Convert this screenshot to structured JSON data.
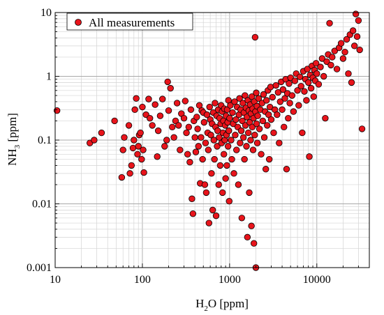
{
  "chart_data": {
    "type": "scatter",
    "title": "",
    "xlabel": {
      "base": "H",
      "sub": "2",
      "rest": "O [ppm]"
    },
    "ylabel": {
      "base": "NH",
      "sub": "3",
      "rest": " [ppm]"
    },
    "x_scale": "log",
    "y_scale": "log",
    "xlim": [
      10,
      40000
    ],
    "ylim": [
      0.001,
      10
    ],
    "x_ticks": [
      {
        "value": 10,
        "label": "10"
      },
      {
        "value": 100,
        "label": "100"
      },
      {
        "value": 1000,
        "label": "1000"
      },
      {
        "value": 10000,
        "label": "10000"
      }
    ],
    "y_ticks": [
      {
        "value": 0.001,
        "label": "0.001"
      },
      {
        "value": 0.01,
        "label": "0.01"
      },
      {
        "value": 0.1,
        "label": "0.1"
      },
      {
        "value": 1,
        "label": "1"
      },
      {
        "value": 10,
        "label": "10"
      }
    ],
    "grid": true,
    "legend_position": "top-left",
    "series": [
      {
        "name": "All measurements",
        "color": "#e8141b",
        "edge_color": "#000000",
        "points": [
          [
            10.5,
            0.29
          ],
          [
            25,
            0.09
          ],
          [
            28,
            0.1
          ],
          [
            34,
            0.13
          ],
          [
            48,
            0.2
          ],
          [
            58,
            0.026
          ],
          [
            60,
            0.07
          ],
          [
            62,
            0.11
          ],
          [
            70,
            0.17
          ],
          [
            72,
            0.03
          ],
          [
            75,
            0.04
          ],
          [
            78,
            0.075
          ],
          [
            80,
            0.1
          ],
          [
            82,
            0.3
          ],
          [
            85,
            0.45
          ],
          [
            88,
            0.06
          ],
          [
            90,
            0.08
          ],
          [
            92,
            0.12
          ],
          [
            95,
            0.13
          ],
          [
            98,
            0.05
          ],
          [
            100,
            0.33
          ],
          [
            102,
            0.07
          ],
          [
            104,
            0.031
          ],
          [
            110,
            0.25
          ],
          [
            118,
            0.44
          ],
          [
            122,
            0.22
          ],
          [
            130,
            0.17
          ],
          [
            140,
            0.36
          ],
          [
            148,
            0.055
          ],
          [
            152,
            0.14
          ],
          [
            160,
            0.24
          ],
          [
            170,
            0.44
          ],
          [
            180,
            0.08
          ],
          [
            190,
            0.1
          ],
          [
            195,
            0.82
          ],
          [
            200,
            0.29
          ],
          [
            210,
            0.65
          ],
          [
            220,
            0.16
          ],
          [
            230,
            0.11
          ],
          [
            240,
            0.2
          ],
          [
            250,
            0.38
          ],
          [
            260,
            0.17
          ],
          [
            270,
            0.07
          ],
          [
            280,
            0.26
          ],
          [
            300,
            0.22
          ],
          [
            310,
            0.41
          ],
          [
            320,
            0.13
          ],
          [
            330,
            0.06
          ],
          [
            340,
            0.16
          ],
          [
            350,
            0.045
          ],
          [
            360,
            0.3
          ],
          [
            370,
            0.012
          ],
          [
            380,
            0.007
          ],
          [
            390,
            0.2
          ],
          [
            400,
            0.11
          ],
          [
            410,
            0.065
          ],
          [
            420,
            0.23
          ],
          [
            430,
            0.15
          ],
          [
            440,
            0.08
          ],
          [
            450,
            0.35
          ],
          [
            460,
            0.021
          ],
          [
            470,
            0.11
          ],
          [
            480,
            0.29
          ],
          [
            490,
            0.05
          ],
          [
            500,
            0.27
          ],
          [
            510,
            0.19
          ],
          [
            520,
            0.02
          ],
          [
            530,
            0.09
          ],
          [
            540,
            0.015
          ],
          [
            550,
            0.25
          ],
          [
            560,
            0.13
          ],
          [
            570,
            0.07
          ],
          [
            580,
            0.005
          ],
          [
            590,
            0.33
          ],
          [
            600,
            0.21
          ],
          [
            610,
            0.12
          ],
          [
            620,
            0.03
          ],
          [
            630,
            0.18
          ],
          [
            640,
            0.008
          ],
          [
            650,
            0.27
          ],
          [
            660,
            0.1
          ],
          [
            670,
            0.05
          ],
          [
            680,
            0.38
          ],
          [
            690,
            0.16
          ],
          [
            700,
            0.0065
          ],
          [
            710,
            0.24
          ],
          [
            720,
            0.08
          ],
          [
            730,
            0.14
          ],
          [
            740,
            0.3
          ],
          [
            750,
            0.02
          ],
          [
            760,
            0.11
          ],
          [
            770,
            0.22
          ],
          [
            780,
            0.04
          ],
          [
            790,
            0.18
          ],
          [
            800,
            0.35
          ],
          [
            810,
            0.09
          ],
          [
            820,
            0.28
          ],
          [
            830,
            0.015
          ],
          [
            840,
            0.13
          ],
          [
            850,
            0.2
          ],
          [
            860,
            0.06
          ],
          [
            870,
            0.31
          ],
          [
            880,
            0.1
          ],
          [
            890,
            0.17
          ],
          [
            900,
            0.025
          ],
          [
            910,
            0.24
          ],
          [
            920,
            0.12
          ],
          [
            930,
            0.04
          ],
          [
            940,
            0.3
          ],
          [
            950,
            0.19
          ],
          [
            960,
            0.08
          ],
          [
            970,
            0.42
          ],
          [
            980,
            0.14
          ],
          [
            990,
            0.011
          ],
          [
            1000,
            0.22
          ],
          [
            1020,
            0.35
          ],
          [
            1040,
            0.1
          ],
          [
            1060,
            0.05
          ],
          [
            1080,
            0.27
          ],
          [
            1100,
            0.18
          ],
          [
            1120,
            0.03
          ],
          [
            1140,
            0.4
          ],
          [
            1160,
            0.12
          ],
          [
            1180,
            0.21
          ],
          [
            1200,
            0.07
          ],
          [
            1220,
            0.33
          ],
          [
            1240,
            0.16
          ],
          [
            1260,
            0.02
          ],
          [
            1280,
            0.25
          ],
          [
            1300,
            0.45
          ],
          [
            1320,
            0.09
          ],
          [
            1340,
            0.3
          ],
          [
            1360,
            0.14
          ],
          [
            1380,
            0.006
          ],
          [
            1400,
            0.2
          ],
          [
            1420,
            0.38
          ],
          [
            1440,
            0.11
          ],
          [
            1460,
            0.27
          ],
          [
            1480,
            0.05
          ],
          [
            1500,
            0.5
          ],
          [
            1520,
            0.17
          ],
          [
            1540,
            0.32
          ],
          [
            1560,
            0.08
          ],
          [
            1580,
            0.23
          ],
          [
            1600,
            0.003
          ],
          [
            1620,
            0.42
          ],
          [
            1640,
            0.13
          ],
          [
            1660,
            0.29
          ],
          [
            1680,
            0.015
          ],
          [
            1700,
            0.19
          ],
          [
            1720,
            0.36
          ],
          [
            1740,
            0.1
          ],
          [
            1760,
            0.26
          ],
          [
            1780,
            0.0045
          ],
          [
            1800,
            0.48
          ],
          [
            1820,
            0.16
          ],
          [
            1840,
            0.31
          ],
          [
            1860,
            0.07
          ],
          [
            1880,
            0.22
          ],
          [
            1900,
            0.0024
          ],
          [
            1920,
            0.4
          ],
          [
            1940,
            0.12
          ],
          [
            1960,
            4.1
          ],
          [
            1980,
            0.28
          ],
          [
            2000,
            0.001
          ],
          [
            2020,
            0.55
          ],
          [
            2040,
            0.18
          ],
          [
            2060,
            0.34
          ],
          [
            2080,
            0.09
          ],
          [
            2100,
            0.24
          ],
          [
            2150,
            0.45
          ],
          [
            2200,
            0.15
          ],
          [
            2250,
            0.3
          ],
          [
            2300,
            0.06
          ],
          [
            2350,
            0.38
          ],
          [
            2400,
            0.2
          ],
          [
            2450,
            0.52
          ],
          [
            2500,
            0.11
          ],
          [
            2550,
            0.28
          ],
          [
            2600,
            0.035
          ],
          [
            2650,
            0.42
          ],
          [
            2700,
            0.17
          ],
          [
            2750,
            0.6
          ],
          [
            2800,
            0.25
          ],
          [
            2850,
            0.05
          ],
          [
            2900,
            0.33
          ],
          [
            2950,
            0.68
          ],
          [
            3000,
            0.21
          ],
          [
            3100,
            0.47
          ],
          [
            3200,
            0.13
          ],
          [
            3300,
            0.3
          ],
          [
            3400,
            0.72
          ],
          [
            3500,
            0.25
          ],
          [
            3600,
            0.56
          ],
          [
            3700,
            0.09
          ],
          [
            3800,
            0.4
          ],
          [
            3900,
            0.82
          ],
          [
            4000,
            0.3
          ],
          [
            4100,
            0.62
          ],
          [
            4200,
            0.16
          ],
          [
            4300,
            0.45
          ],
          [
            4400,
            0.9
          ],
          [
            4500,
            0.035
          ],
          [
            4600,
            0.54
          ],
          [
            4700,
            0.22
          ],
          [
            4800,
            0.77
          ],
          [
            4900,
            0.38
          ],
          [
            5000,
            0.95
          ],
          [
            5200,
            0.5
          ],
          [
            5400,
            0.28
          ],
          [
            5600,
            0.85
          ],
          [
            5800,
            1.1
          ],
          [
            6000,
            0.6
          ],
          [
            6200,
            0.35
          ],
          [
            6400,
            0.98
          ],
          [
            6600,
            0.7
          ],
          [
            6800,
            0.13
          ],
          [
            7000,
            1.2
          ],
          [
            7200,
            0.58
          ],
          [
            7400,
            0.9
          ],
          [
            7600,
            0.42
          ],
          [
            7800,
            1.3
          ],
          [
            8000,
            0.8
          ],
          [
            8200,
            0.055
          ],
          [
            8400,
            1.05
          ],
          [
            8600,
            0.65
          ],
          [
            8800,
            1.45
          ],
          [
            9000,
            0.95
          ],
          [
            9200,
            0.48
          ],
          [
            9400,
            1.25
          ],
          [
            9600,
            0.85
          ],
          [
            9800,
            1.6
          ],
          [
            10000,
            1.1
          ],
          [
            10500,
            0.75
          ],
          [
            11000,
            1.4
          ],
          [
            11500,
            1.9
          ],
          [
            12000,
            1.0
          ],
          [
            12500,
            0.22
          ],
          [
            13000,
            1.7
          ],
          [
            13500,
            2.2
          ],
          [
            14000,
            6.8
          ],
          [
            14500,
            1.5
          ],
          [
            15000,
            2.0
          ],
          [
            16000,
            2.5
          ],
          [
            17000,
            1.3
          ],
          [
            18000,
            2.8
          ],
          [
            19000,
            3.3
          ],
          [
            20000,
            1.9
          ],
          [
            21000,
            2.4
          ],
          [
            22000,
            3.8
          ],
          [
            23000,
            1.1
          ],
          [
            24000,
            4.5
          ],
          [
            25000,
            0.8
          ],
          [
            26000,
            5.2
          ],
          [
            27000,
            3.0
          ],
          [
            28000,
            9.5
          ],
          [
            29000,
            4.2
          ],
          [
            30000,
            7.5
          ],
          [
            31000,
            2.6
          ],
          [
            33000,
            0.15
          ]
        ]
      }
    ]
  }
}
